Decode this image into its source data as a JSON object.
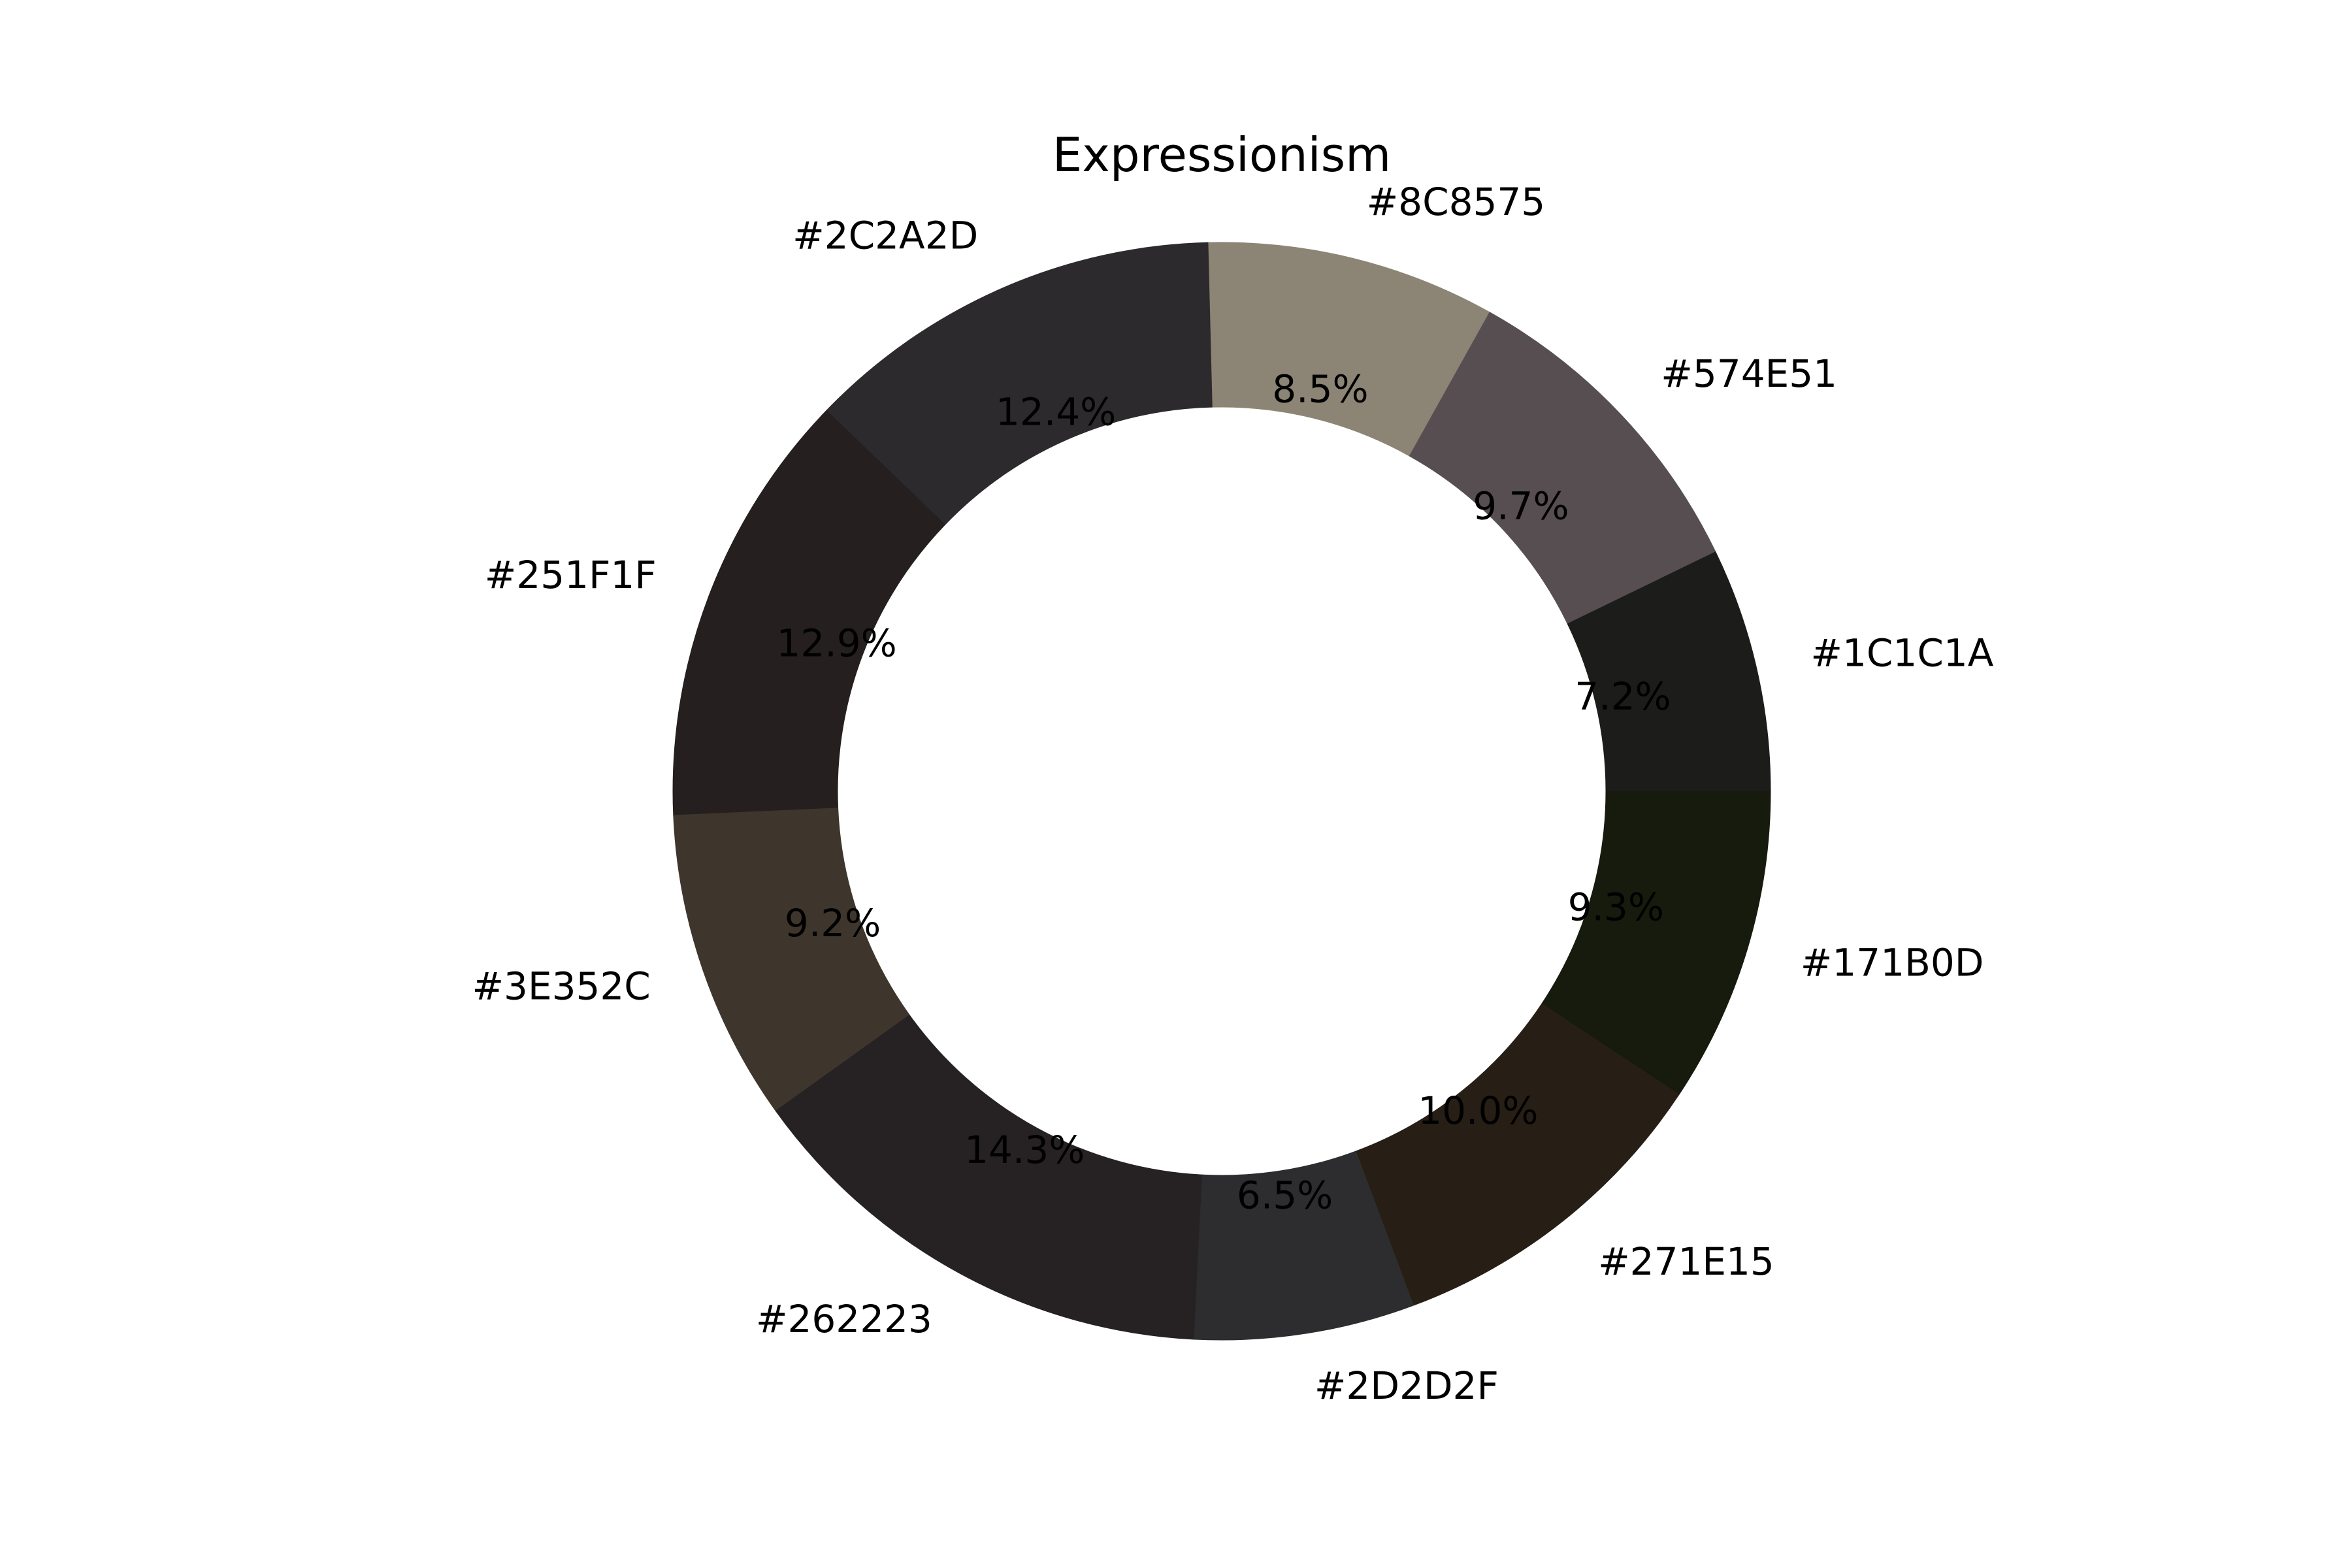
{
  "chart_data": {
    "type": "pie",
    "variant": "donut",
    "title": "Expressionism",
    "start_angle_deg": 0,
    "direction": "counterclockwise",
    "slices": [
      {
        "label": "#1C1C1A",
        "value": 7.2,
        "pct_label": "7.2%",
        "color": "#1C1C1A"
      },
      {
        "label": "#574E51",
        "value": 9.7,
        "pct_label": "9.7%",
        "color": "#574E51"
      },
      {
        "label": "#8C8575",
        "value": 8.5,
        "pct_label": "8.5%",
        "color": "#8C8575"
      },
      {
        "label": "#2C2A2D",
        "value": 12.4,
        "pct_label": "12.4%",
        "color": "#2C2A2D"
      },
      {
        "label": "#251F1F",
        "value": 12.9,
        "pct_label": "12.9%",
        "color": "#251F1F"
      },
      {
        "label": "#3E352C",
        "value": 9.2,
        "pct_label": "9.2%",
        "color": "#3E352C"
      },
      {
        "label": "#262223",
        "value": 14.3,
        "pct_label": "14.3%",
        "color": "#262223"
      },
      {
        "label": "#2D2D2F",
        "value": 6.5,
        "pct_label": "6.5%",
        "color": "#2D2D2F"
      },
      {
        "label": "#271E15",
        "value": 10.0,
        "pct_label": "10.0%",
        "color": "#271E15"
      },
      {
        "label": "#171B0D",
        "value": 9.3,
        "pct_label": "9.3%",
        "color": "#171B0D"
      }
    ]
  }
}
